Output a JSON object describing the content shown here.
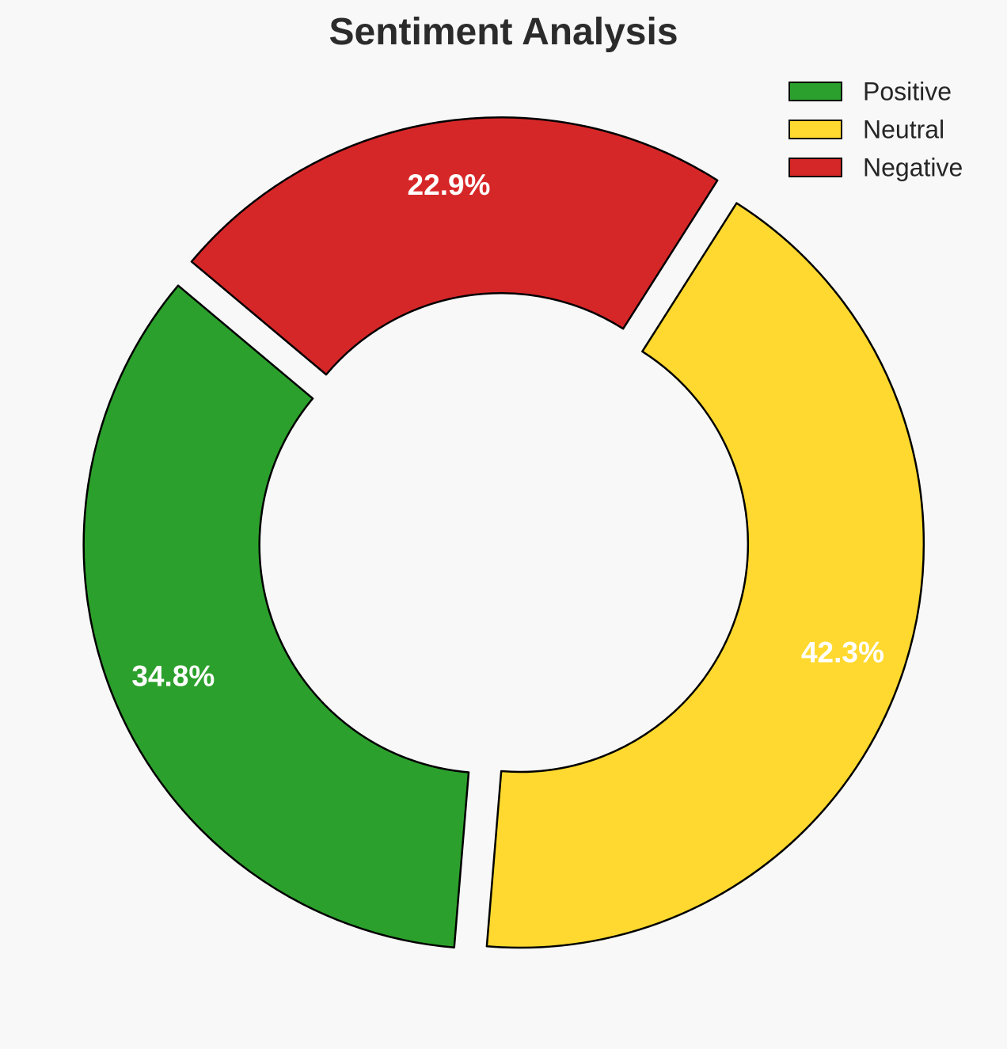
{
  "chart_data": {
    "type": "pie",
    "title": "Sentiment Analysis",
    "categories": [
      "Positive",
      "Neutral",
      "Negative"
    ],
    "values": [
      34.8,
      42.3,
      22.9
    ],
    "value_labels": [
      "34.8%",
      "42.3%",
      "22.9%"
    ],
    "colors": [
      "#2ca02c",
      "#ffd92f",
      "#d62728"
    ],
    "edge_color": "#000000",
    "label_color": "#ffffff",
    "donut": true,
    "exploded": true,
    "start_angle_deg": 140,
    "direction": "counterclockwise",
    "legend_placement": "top-right"
  }
}
